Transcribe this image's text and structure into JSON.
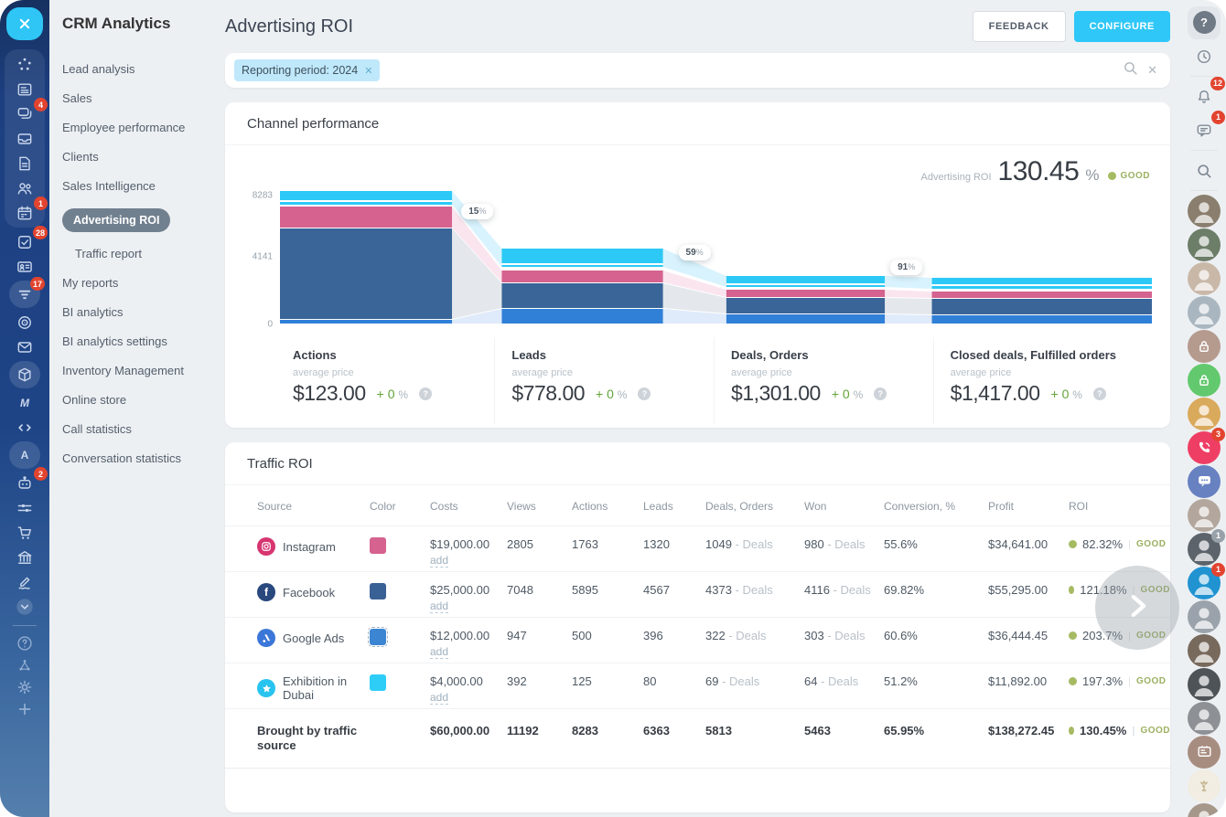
{
  "sidebar": {
    "title": "CRM Analytics",
    "items": [
      {
        "label": "Lead analysis"
      },
      {
        "label": "Sales"
      },
      {
        "label": "Employee performance"
      },
      {
        "label": "Clients"
      },
      {
        "label": "Sales Intelligence"
      },
      {
        "label": "Advertising ROI",
        "active": true
      },
      {
        "label": "Traffic report",
        "indent": true
      },
      {
        "label": "My reports"
      },
      {
        "label": "BI analytics"
      },
      {
        "label": "BI analytics settings"
      },
      {
        "label": "Inventory Management"
      },
      {
        "label": "Online store"
      },
      {
        "label": "Call statistics"
      },
      {
        "label": "Conversation statistics"
      }
    ]
  },
  "header": {
    "title": "Advertising ROI",
    "feedback_label": "FEEDBACK",
    "configure_label": "CONFIGURE"
  },
  "filter": {
    "chip_label": "Reporting period: 2024",
    "chip_close": "✕",
    "clear_label": "✕"
  },
  "channel": {
    "title": "Channel performance",
    "metric_label": "Advertising ROI",
    "metric_value": "130.45",
    "metric_unit": "%",
    "metric_status": "GOOD",
    "stages": [
      {
        "name": "Actions",
        "avg_label": "average price",
        "price": "$123.00",
        "delta": "+ 0",
        "delta_unit": "%"
      },
      {
        "name": "Leads",
        "avg_label": "average price",
        "price": "$778.00",
        "delta": "+ 0",
        "delta_unit": "%"
      },
      {
        "name": "Deals, Orders",
        "avg_label": "average price",
        "price": "$1,301.00",
        "delta": "+ 0",
        "delta_unit": "%"
      },
      {
        "name": "Closed deals, Fulfilled orders",
        "avg_label": "average price",
        "price": "$1,417.00",
        "delta": "+ 0",
        "delta_unit": "%"
      }
    ]
  },
  "chart_data": {
    "type": "funnel",
    "title": "Channel performance",
    "metric": {
      "label": "Advertising ROI",
      "value": 130.45,
      "unit": "%",
      "status": "GOOD"
    },
    "stages": [
      "Actions",
      "Leads",
      "Deals, Orders",
      "Closed deals, Fulfilled orders"
    ],
    "stage_totals": [
      8283,
      6363,
      5813,
      5463
    ],
    "conversion_badges": [
      {
        "value": "15",
        "unit": "%"
      },
      {
        "value": "59",
        "unit": "%"
      },
      {
        "value": "91",
        "unit": "%"
      }
    ],
    "y_axis_ticks": [
      "8283",
      "4141",
      "0"
    ],
    "y_max": 8283,
    "series": [
      {
        "name": "Instagram",
        "color": "#d5628f",
        "values": {
          "actions": 1763,
          "leads": 1320,
          "deals": 1049,
          "won": 980
        }
      },
      {
        "name": "Facebook",
        "color": "#3a6598",
        "values": {
          "actions": 5895,
          "leads": 4567,
          "deals": 4373,
          "won": 4116
        }
      },
      {
        "name": "Google Ads",
        "color": "#3080d8",
        "values": {
          "actions": 500,
          "leads": 396,
          "deals": 322,
          "won": 303
        }
      },
      {
        "name": "Exhibition in Dubai",
        "color": "#2cc9f6",
        "values": {
          "actions": 125,
          "leads": 80,
          "deals": 69,
          "won": 64
        }
      }
    ],
    "average_prices": {
      "actions": "$123.00",
      "leads": "$778.00",
      "deals": "$1,301.00",
      "won": "$1,417.00"
    }
  },
  "table": {
    "title": "Traffic ROI",
    "columns": [
      "Source",
      "Color",
      "Costs",
      "Views",
      "Actions",
      "Leads",
      "Deals, Orders",
      "Won",
      "Conversion, %",
      "Profit",
      "ROI"
    ],
    "add_label": "add",
    "deals_suffix": "- Deals",
    "status_divider": "|",
    "rows": [
      {
        "source": "Instagram",
        "icon": "instagram",
        "icon_bg": "#d6356f",
        "color": "#d5628f",
        "costs": "$19,000.00",
        "views": "2805",
        "actions": "1763",
        "leads": "1320",
        "deals": "1049",
        "won": "980",
        "conversion": "55.6%",
        "profit": "$34,641.00",
        "roi": "82.32%",
        "status": "GOOD"
      },
      {
        "source": "Facebook",
        "icon": "facebook",
        "icon_bg": "#29487d",
        "color": "#3a6195",
        "costs": "$25,000.00",
        "views": "7048",
        "actions": "5895",
        "leads": "4567",
        "deals": "4373",
        "won": "4116",
        "conversion": "69.82%",
        "profit": "$55,295.00",
        "roi": "121.18%",
        "status": "GOOD"
      },
      {
        "source": "Google Ads",
        "icon": "googleads",
        "icon_bg": "#3b77d8",
        "color": "#3c85d2",
        "swatch_dashed": true,
        "costs": "$12,000.00",
        "views": "947",
        "actions": "500",
        "leads": "396",
        "deals": "322",
        "won": "303",
        "conversion": "60.6%",
        "profit": "$36,444.45",
        "roi": "203.7%",
        "status": "GOOD"
      },
      {
        "source": "Exhibition in Dubai",
        "icon": "star",
        "icon_bg": "#29c3ef",
        "color": "#2ecdf7",
        "costs": "$4,000.00",
        "views": "392",
        "actions": "125",
        "leads": "80",
        "deals": "69",
        "won": "64",
        "conversion": "51.2%",
        "profit": "$11,892.00",
        "roi": "197.3%",
        "status": "GOOD"
      }
    ],
    "totals": {
      "label": "Brought by traffic source",
      "costs": "$60,000.00",
      "views": "11192",
      "actions": "8283",
      "leads": "6363",
      "deals": "5813",
      "won": "5463",
      "conversion": "65.95%",
      "profit": "$138,272.45",
      "roi": "130.45%",
      "status": "GOOD"
    }
  },
  "left_rail": {
    "items": [
      {
        "icon": "pulse",
        "name": "activity-stream-icon",
        "group": true
      },
      {
        "icon": "feed",
        "name": "news-feed-icon",
        "group": true
      },
      {
        "icon": "chat",
        "name": "chat-icon",
        "badge": "4",
        "group": true
      },
      {
        "icon": "inbox",
        "name": "inbox-icon",
        "group": true
      },
      {
        "icon": "doc",
        "name": "documents-icon",
        "group": true
      },
      {
        "icon": "users",
        "name": "employees-icon",
        "group": true
      },
      {
        "icon": "calendar",
        "name": "calendar-icon",
        "badge": "1",
        "group": true
      },
      {
        "icon": "tasks",
        "name": "tasks-icon",
        "badge": "28"
      },
      {
        "icon": "idcard",
        "name": "contacts-icon"
      },
      {
        "icon": "funnel",
        "name": "crm-funnel-icon",
        "badge": "17",
        "circled": true
      },
      {
        "icon": "target",
        "name": "marketing-target-icon"
      },
      {
        "icon": "mail",
        "name": "mail-icon"
      },
      {
        "icon": "box",
        "name": "inventory-box-icon",
        "circled": true
      },
      {
        "icon": "market-m",
        "name": "market-icon"
      },
      {
        "icon": "code",
        "name": "developer-code-icon"
      },
      {
        "icon": "letter-a",
        "name": "automation-icon",
        "circled": true
      },
      {
        "icon": "robot",
        "name": "ai-assistant-icon",
        "badge": "2"
      },
      {
        "icon": "sliders",
        "name": "settings-sliders-icon"
      },
      {
        "icon": "cart",
        "name": "online-store-cart-icon"
      },
      {
        "icon": "bank",
        "name": "company-bank-icon"
      },
      {
        "icon": "sign",
        "name": "e-signature-icon"
      },
      {
        "icon": "chevron-down-circle",
        "name": "more-items-icon"
      },
      {
        "divider": true
      },
      {
        "icon": "help",
        "name": "help-icon",
        "dim": true
      },
      {
        "icon": "share",
        "name": "structure-icon",
        "dim": true
      },
      {
        "icon": "gear",
        "name": "settings-gear-icon",
        "dim": true
      },
      {
        "icon": "plus",
        "name": "add-icon",
        "dim": true
      }
    ]
  },
  "right_rail": {
    "items": [
      {
        "icon": "question",
        "name": "help-button",
        "boxed": true
      },
      {
        "icon": "history",
        "name": "history-button",
        "sep_after": true
      },
      {
        "icon": "bell",
        "name": "notifications-button",
        "badge": "12"
      },
      {
        "icon": "chat-lines",
        "name": "messenger-button",
        "badge": "1",
        "sep_after": true
      },
      {
        "icon": "search",
        "name": "search-button",
        "sep_after": true
      },
      {
        "icon": "person",
        "name": "avatar",
        "bg": "#8a7e6e"
      },
      {
        "icon": "person",
        "name": "avatar",
        "bg": "#6c7d68"
      },
      {
        "icon": "person",
        "name": "avatar",
        "bg": "#c9b8a8"
      },
      {
        "icon": "person",
        "name": "avatar",
        "bg": "#aab6bf"
      },
      {
        "icon": "lock",
        "name": "locked-chat",
        "bg": "#b59a8e"
      },
      {
        "icon": "lock",
        "name": "locked-chat-green",
        "bg": "#62c96e"
      },
      {
        "icon": "person",
        "name": "avatar",
        "bg": "#d9a95c"
      },
      {
        "icon": "phone",
        "name": "calls-button",
        "bg": "#ef3e64",
        "badge": "3"
      },
      {
        "icon": "group-chat",
        "name": "group-chat-button",
        "bg": "#6781c1"
      },
      {
        "icon": "person",
        "name": "avatar",
        "bg": "#b3a79d"
      },
      {
        "icon": "person",
        "name": "avatar",
        "bg": "#5c636b",
        "badge": "1",
        "badge_gray": true
      },
      {
        "icon": "person",
        "name": "avatar",
        "bg": "#2193d1",
        "badge": "1"
      },
      {
        "icon": "person",
        "name": "avatar",
        "bg": "#9aa3ab"
      },
      {
        "icon": "person",
        "name": "avatar",
        "bg": "#77695c"
      },
      {
        "icon": "person",
        "name": "avatar",
        "bg": "#4e5357"
      },
      {
        "icon": "person",
        "name": "avatar",
        "bg": "#8d9094"
      },
      {
        "icon": "card",
        "name": "crm-card-chat",
        "bg": "#a78d80"
      },
      {
        "icon": "first-place",
        "name": "first-place-sticker",
        "bg": "#f1ede2"
      },
      {
        "icon": "person",
        "name": "avatar",
        "bg": "#a5978a"
      }
    ]
  },
  "colors": {
    "accent": "#2fc7f7",
    "good": "#9db061",
    "pink": "#d5628f",
    "dark_blue": "#3a6598",
    "mid_blue": "#3080d8",
    "cyan": "#2cc9f6"
  }
}
